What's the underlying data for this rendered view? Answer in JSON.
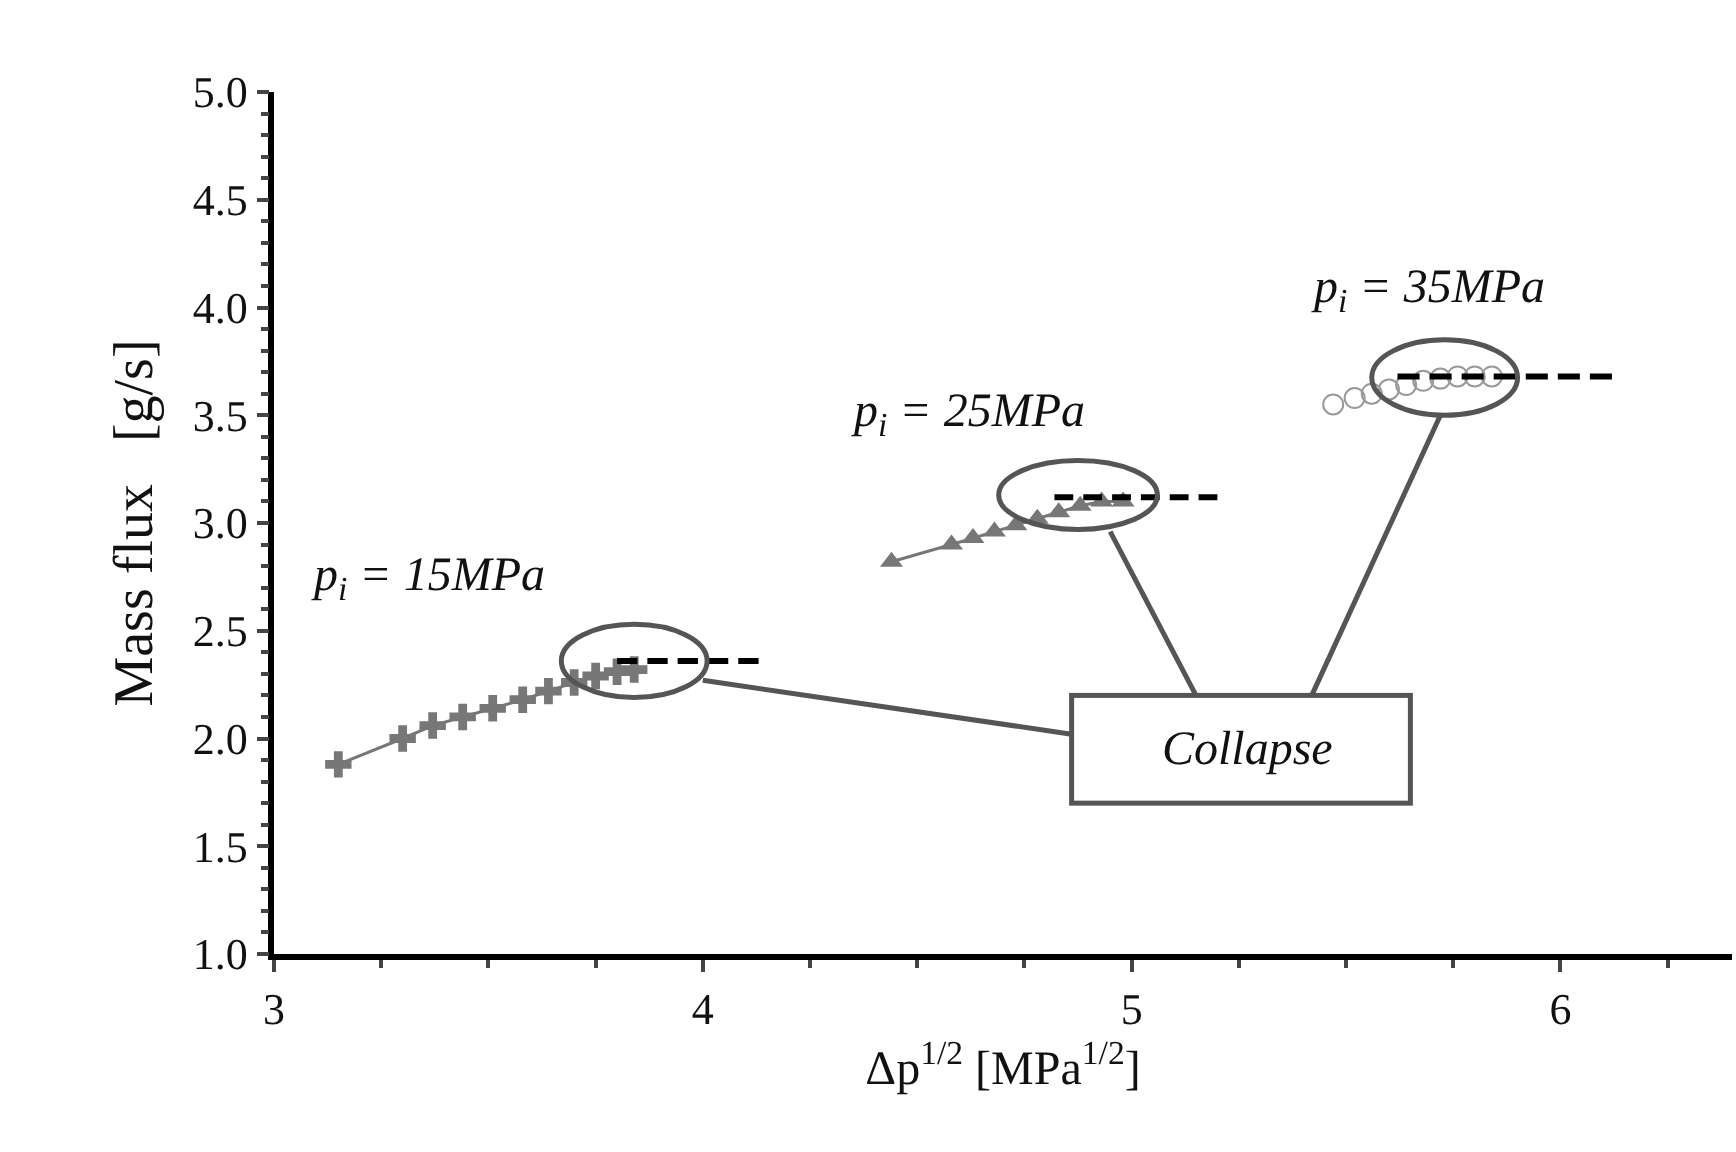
{
  "chart_data": {
    "type": "scatter",
    "xlabel": "Δp$^{1/2}$ [MPa$^{1/2}$]",
    "ylabel": "Mass flux   [g/s]",
    "xlim": [
      3,
      6.4
    ],
    "xticks": [
      3,
      4,
      5,
      6
    ],
    "ylim": [
      1,
      5
    ],
    "yticks": [
      {
        "value": 1,
        "label": "1.0"
      },
      {
        "value": 1.5,
        "label": "1.5"
      },
      {
        "value": 2,
        "label": "2.0"
      },
      {
        "value": 2.5,
        "label": "2.5"
      },
      {
        "value": 3,
        "label": "3.0"
      },
      {
        "value": 3.5,
        "label": "3.5"
      },
      {
        "value": 4,
        "label": "4.0"
      },
      {
        "value": 4.5,
        "label": "4.5"
      },
      {
        "value": 5,
        "label": "5.0"
      }
    ],
    "grid": false,
    "series": [
      {
        "type": "line",
        "marker": "cross",
        "color": "#777777",
        "x": [
          3.15,
          3.3,
          3.37,
          3.44,
          3.51,
          3.58,
          3.64,
          3.7,
          3.75,
          3.8,
          3.84
        ],
        "values": [
          1.88,
          2.0,
          2.06,
          2.1,
          2.14,
          2.18,
          2.22,
          2.26,
          2.29,
          2.31,
          2.32
        ]
      },
      {
        "type": "line",
        "marker": "triangle",
        "color": "#777777",
        "x": [
          4.44,
          4.58,
          4.63,
          4.68,
          4.73,
          4.78,
          4.83,
          4.88,
          4.93,
          4.98
        ],
        "values": [
          2.82,
          2.9,
          2.93,
          2.96,
          2.99,
          3.02,
          3.05,
          3.08,
          3.1,
          3.1
        ]
      },
      {
        "type": "scatter",
        "marker": "circle",
        "color": "#999999",
        "x": [
          5.47,
          5.52,
          5.56,
          5.6,
          5.64,
          5.68,
          5.72,
          5.76,
          5.8,
          5.84
        ],
        "values": [
          3.55,
          3.58,
          3.6,
          3.62,
          3.64,
          3.66,
          3.67,
          3.68,
          3.68,
          3.68
        ]
      },
      {
        "type": "line",
        "marker": "none",
        "line_style": "dashed",
        "color": "#000000",
        "x": [
          3.8,
          4.13
        ],
        "values": [
          2.36,
          2.36
        ]
      },
      {
        "type": "line",
        "marker": "none",
        "line_style": "dashed",
        "color": "#000000",
        "x": [
          4.82,
          5.2
        ],
        "values": [
          3.12,
          3.12
        ]
      },
      {
        "type": "line",
        "marker": "none",
        "line_style": "dashed",
        "color": "#000000",
        "x": [
          5.62,
          6.12
        ],
        "values": [
          3.68,
          3.68
        ]
      }
    ],
    "annotations": [
      "p$_{i}$ = 15MPa",
      "p$_{i}$ = 25MPa",
      "p$_{i}$ = 35MPa",
      "Collapse"
    ]
  }
}
